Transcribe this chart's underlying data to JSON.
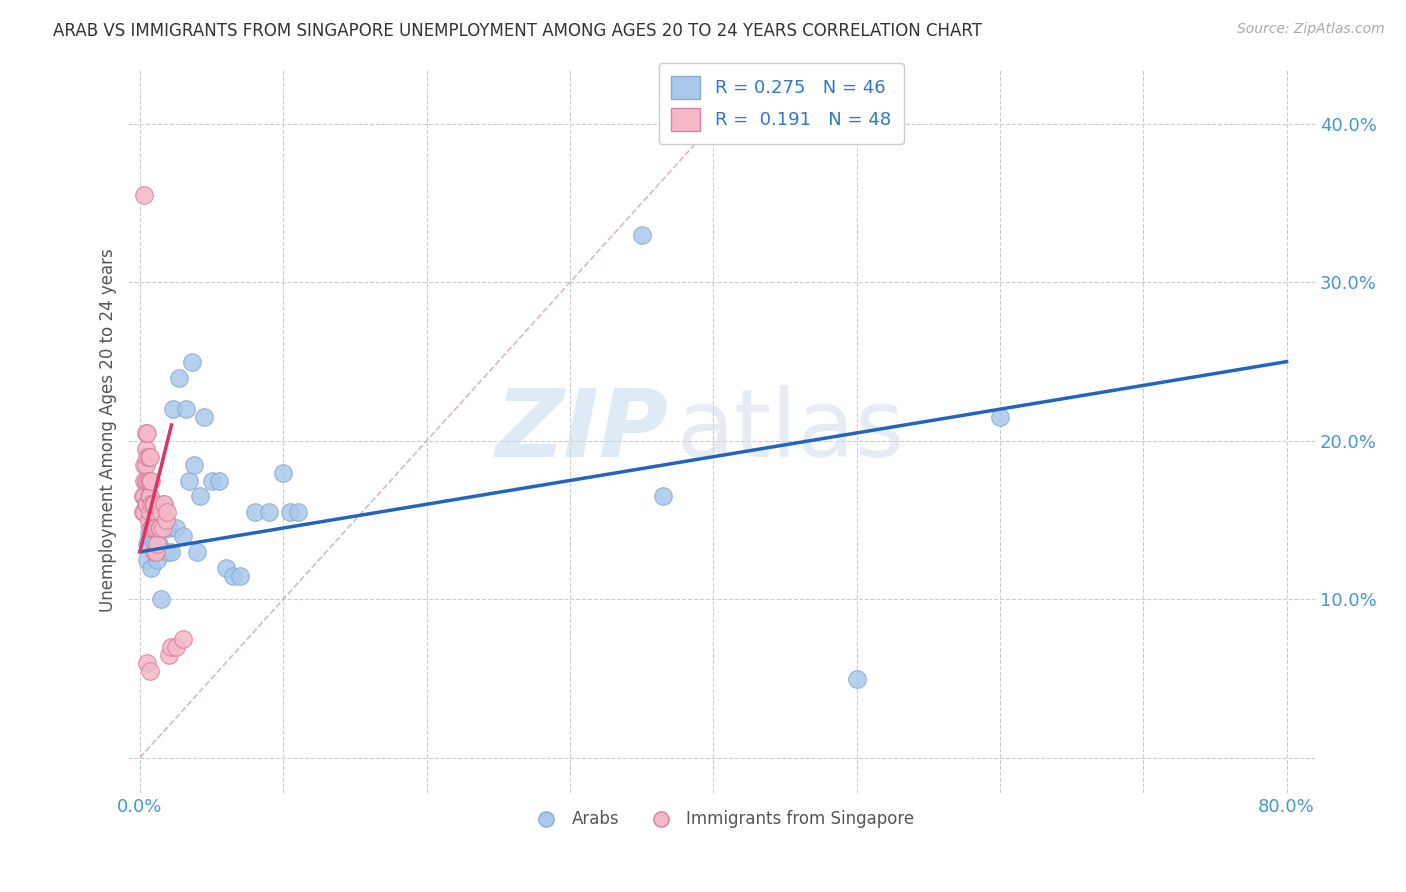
{
  "title": "ARAB VS IMMIGRANTS FROM SINGAPORE UNEMPLOYMENT AMONG AGES 20 TO 24 YEARS CORRELATION CHART",
  "source": "Source: ZipAtlas.com",
  "ylabel": "Unemployment Among Ages 20 to 24 years",
  "xlim": [
    -0.008,
    0.82
  ],
  "ylim": [
    -0.022,
    0.435
  ],
  "xtick_pos": [
    0.0,
    0.1,
    0.2,
    0.3,
    0.4,
    0.5,
    0.6,
    0.7,
    0.8
  ],
  "ytick_pos": [
    0.0,
    0.1,
    0.2,
    0.3,
    0.4
  ],
  "background_color": "#ffffff",
  "grid_color": "#cccccc",
  "arab_color": "#aac8ea",
  "arab_edge_color": "#88aad4",
  "sing_color": "#f4b8c8",
  "sing_edge_color": "#d880a0",
  "trend_arab_color": "#2266bb",
  "trend_sing_color": "#dd3366",
  "diag_color": "#ccaaaa",
  "legend_r1_val": "0.275",
  "legend_n1_val": "46",
  "legend_r2_val": "0.191",
  "legend_n2_val": "48",
  "watermark_zip_color": "#c8dcf0",
  "watermark_atlas_color": "#d0d8e8",
  "arab_x": [
    0.005,
    0.005,
    0.006,
    0.007,
    0.008,
    0.008,
    0.009,
    0.01,
    0.01,
    0.011,
    0.012,
    0.012,
    0.013,
    0.014,
    0.015,
    0.015,
    0.016,
    0.018,
    0.019,
    0.02,
    0.022,
    0.023,
    0.025,
    0.027,
    0.03,
    0.032,
    0.034,
    0.036,
    0.038,
    0.04,
    0.042,
    0.045,
    0.05,
    0.055,
    0.06,
    0.065,
    0.07,
    0.08,
    0.09,
    0.1,
    0.105,
    0.11,
    0.35,
    0.365,
    0.5,
    0.6
  ],
  "arab_y": [
    0.125,
    0.135,
    0.14,
    0.145,
    0.12,
    0.155,
    0.145,
    0.135,
    0.155,
    0.145,
    0.125,
    0.15,
    0.135,
    0.155,
    0.1,
    0.145,
    0.16,
    0.145,
    0.13,
    0.145,
    0.13,
    0.22,
    0.145,
    0.24,
    0.14,
    0.22,
    0.175,
    0.25,
    0.185,
    0.13,
    0.165,
    0.215,
    0.175,
    0.175,
    0.12,
    0.115,
    0.115,
    0.155,
    0.155,
    0.18,
    0.155,
    0.155,
    0.33,
    0.165,
    0.05,
    0.215
  ],
  "sing_x": [
    0.002,
    0.002,
    0.003,
    0.003,
    0.003,
    0.003,
    0.004,
    0.004,
    0.004,
    0.004,
    0.004,
    0.005,
    0.005,
    0.005,
    0.005,
    0.006,
    0.006,
    0.006,
    0.006,
    0.007,
    0.007,
    0.007,
    0.007,
    0.008,
    0.008,
    0.008,
    0.009,
    0.009,
    0.01,
    0.01,
    0.01,
    0.011,
    0.011,
    0.012,
    0.013,
    0.014,
    0.015,
    0.016,
    0.017,
    0.018,
    0.019,
    0.02,
    0.022,
    0.025,
    0.03,
    0.003,
    0.005,
    0.007
  ],
  "sing_y": [
    0.155,
    0.165,
    0.155,
    0.165,
    0.175,
    0.185,
    0.16,
    0.175,
    0.185,
    0.195,
    0.205,
    0.16,
    0.175,
    0.19,
    0.205,
    0.15,
    0.165,
    0.175,
    0.19,
    0.155,
    0.165,
    0.175,
    0.19,
    0.145,
    0.16,
    0.175,
    0.145,
    0.16,
    0.13,
    0.145,
    0.16,
    0.13,
    0.145,
    0.135,
    0.145,
    0.145,
    0.155,
    0.145,
    0.16,
    0.15,
    0.155,
    0.065,
    0.07,
    0.07,
    0.075,
    0.355,
    0.06,
    0.055
  ]
}
